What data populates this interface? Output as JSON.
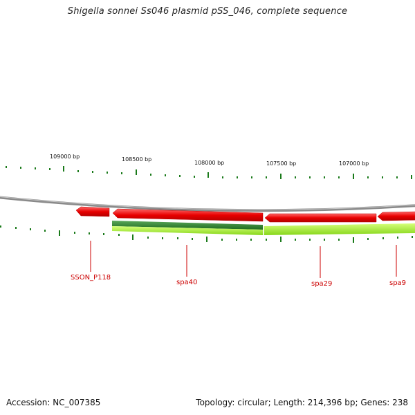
{
  "title": "Shigella sonnei Ss046 plasmid pSS_046, complete sequence",
  "footer": {
    "accession": "Accession: NC_007385",
    "summary": "Topology: circular; Length: 214,396 bp; Genes: 238"
  },
  "ruler": {
    "labels": [
      "109000 bp",
      "108500 bp",
      "108000 bp",
      "107500 bp",
      "107000 bp"
    ]
  },
  "genes": [
    {
      "name": "SSON_P118",
      "strand": "reverse"
    },
    {
      "name": "spa40",
      "strand": "reverse"
    },
    {
      "name": "spa29",
      "strand": "reverse"
    },
    {
      "name": "spa9",
      "strand": "reverse"
    }
  ],
  "colors": {
    "backbone": "#8a8a8a",
    "cds_forward_red": "#e60000",
    "cds_dark_green": "#2e7d32",
    "cds_light_green": "#9be22d",
    "tick_green": "#1a7a1a",
    "label_red": "#cc0000"
  }
}
